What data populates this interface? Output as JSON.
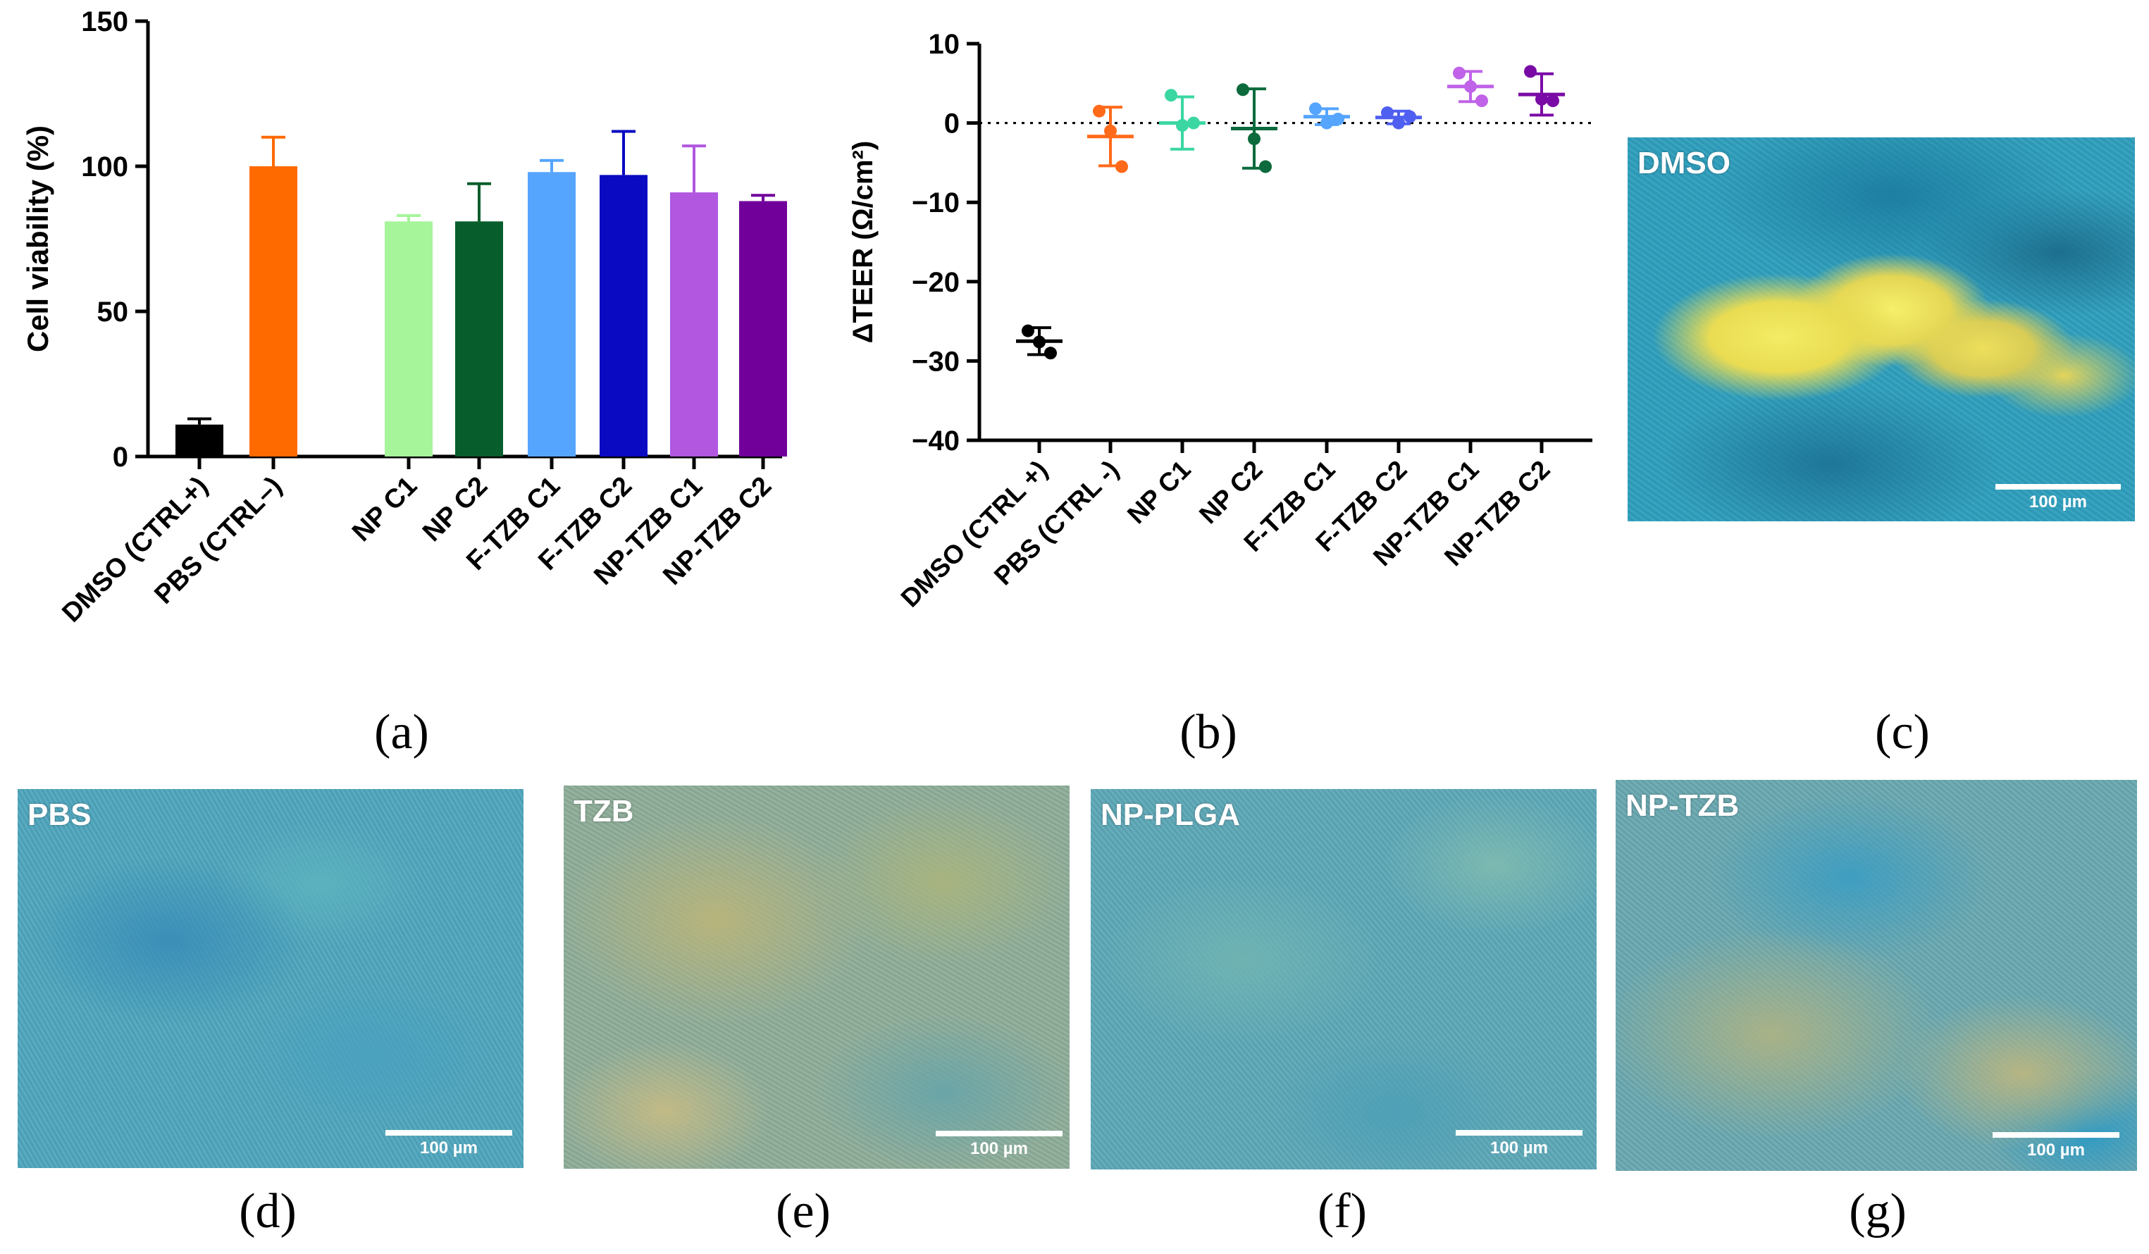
{
  "chart_data": [
    {
      "panel": "(a)",
      "type": "bar",
      "ylabel": "Cell viability (%)",
      "xlabel": "",
      "ylim": [
        0,
        150
      ],
      "yticks": [
        "0",
        "50",
        "100",
        "150"
      ],
      "categories": [
        "DMSO (CTRL+)",
        "PBS (CTRL–)",
        "NP C1",
        "NP C2",
        "F-TZB C1",
        "F-TZB C2",
        "NP-TZB C1",
        "NP-TZB C2"
      ],
      "values": [
        11,
        100,
        81,
        81,
        98,
        97,
        91,
        88
      ],
      "errors": [
        2,
        10,
        2,
        13,
        4,
        15,
        16,
        2
      ],
      "colors": [
        "#000000",
        "#ff6a00",
        "#a6f59b",
        "#075d2b",
        "#55a5ff",
        "#0a0ac2",
        "#b157e0",
        "#71009b"
      ]
    },
    {
      "panel": "(b)",
      "type": "scatter",
      "ylabel": "ΔTEER (Ω/cm²)",
      "xlabel": "",
      "ylim": [
        -40,
        10
      ],
      "yticks": [
        "−40",
        "−30",
        "−20",
        "−10",
        "0",
        "10"
      ],
      "reference_line_y": 0,
      "categories": [
        "DMSO (CTRL +)",
        "PBS (CTRL -)",
        "NP C1",
        "NP C2",
        "F-TZB C1",
        "F-TZB C2",
        "NP-TZB C1",
        "NP-TZB C2"
      ],
      "means": [
        -27.5,
        -1.7,
        0,
        -0.7,
        0.8,
        0.7,
        4.6,
        3.6
      ],
      "sd": [
        1.7,
        3.7,
        3.3,
        5.0,
        1.0,
        0.8,
        1.9,
        2.6
      ],
      "points": [
        [
          -26.2,
          -27.6,
          -29.0
        ],
        [
          1.5,
          -1.0,
          -5.5
        ],
        [
          3.5,
          -0.3,
          0.0
        ],
        [
          4.2,
          -2.0,
          -5.5
        ],
        [
          1.8,
          0.0,
          0.5
        ],
        [
          1.3,
          0.0,
          0.8
        ],
        [
          6.3,
          4.6,
          2.8
        ],
        [
          6.5,
          3.0,
          2.8
        ]
      ],
      "colors": [
        "#000000",
        "#ff6a1a",
        "#3ad7a3",
        "#0c6a3c",
        "#55a5ff",
        "#4f5ff0",
        "#c063e8",
        "#7a0aa6"
      ]
    }
  ],
  "panels": {
    "a": "(a)",
    "b": "(b)",
    "c": "(c)",
    "d": "(d)",
    "e": "(e)",
    "f": "(f)",
    "g": "(g)"
  },
  "micrographs": [
    {
      "label": "DMSO",
      "scale": "100 µm"
    },
    {
      "label": "PBS",
      "scale": "100 µm"
    },
    {
      "label": "TZB",
      "scale": "100 µm"
    },
    {
      "label": "NP-PLGA",
      "scale": "100 µm"
    },
    {
      "label": "NP-TZB",
      "scale": "100 µm"
    }
  ]
}
